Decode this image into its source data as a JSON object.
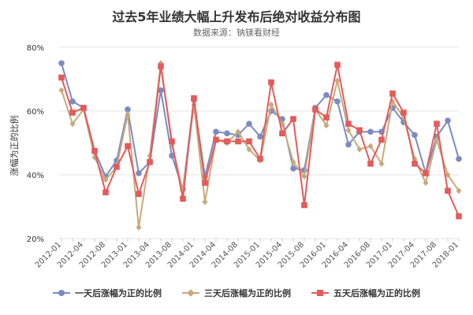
{
  "chart_data": {
    "type": "line",
    "title": "过去5年业绩大幅上升发布后绝对收益分布图",
    "subtitle": "数据来源：钠镁看财经",
    "ylabel": "涨幅为正的比例",
    "xlabel": "",
    "ylim": [
      20,
      80
    ],
    "yticks": [
      "20%",
      "40%",
      "60%",
      "80%"
    ],
    "ytick_values": [
      20,
      40,
      60,
      80
    ],
    "grid": true,
    "legend_position": "bottom",
    "x_tick_labels": [
      "2012-01",
      "2012-04",
      "2012-08",
      "2013-01",
      "2013-04",
      "2013-08",
      "2014-01",
      "2014-04",
      "2014-08",
      "2015-01",
      "2015-04",
      "2015-08",
      "2016-01",
      "2016-04",
      "2016-08",
      "2017-01",
      "2017-04",
      "2017-08",
      "2018-01"
    ],
    "x_tick_index": [
      0,
      2,
      4,
      6,
      8,
      10,
      12,
      14,
      16,
      18,
      20,
      22,
      24,
      26,
      28,
      30,
      32,
      34,
      36
    ],
    "series": [
      {
        "name": "一天后涨幅为正的比例",
        "color": "#7b8bc1",
        "marker": "circle",
        "values": [
          75,
          63,
          61,
          47.5,
          39.5,
          44.5,
          60.5,
          40.5,
          44,
          66.5,
          46,
          35.5,
          63.5,
          39.5,
          53.5,
          53,
          52.5,
          56,
          52,
          60,
          57.5,
          42,
          41.5,
          61,
          65,
          63,
          49.5,
          53.5,
          53.5,
          53.5,
          61,
          56.5,
          52.5,
          40.5,
          52,
          57,
          45
        ]
      },
      {
        "name": "三天后涨幅为正的比例",
        "color": "#c9a97b",
        "marker": "diamond",
        "values": [
          66.5,
          56,
          60.5,
          45.5,
          38.5,
          42.5,
          59,
          23.5,
          46,
          75,
          49.5,
          35,
          62,
          31.5,
          51,
          50,
          53.5,
          48,
          44.5,
          62,
          56,
          44,
          39.5,
          60.5,
          55.5,
          69.5,
          54,
          48,
          49,
          43.5,
          63,
          58,
          45,
          37.5,
          51,
          40,
          35
        ]
      },
      {
        "name": "五天后涨幅为正的比例",
        "color": "#e35b5b",
        "marker": "square",
        "values": [
          70.5,
          59.5,
          61,
          47.5,
          34.5,
          42.5,
          49,
          34,
          44,
          74,
          50.5,
          32.5,
          64,
          37.5,
          51,
          50.5,
          50.5,
          50.5,
          45,
          69,
          53,
          57.5,
          30.5,
          60.5,
          58,
          74.5,
          56,
          54,
          43.5,
          51,
          65.5,
          59.5,
          43.5,
          40.5,
          56,
          35,
          27
        ]
      }
    ]
  }
}
